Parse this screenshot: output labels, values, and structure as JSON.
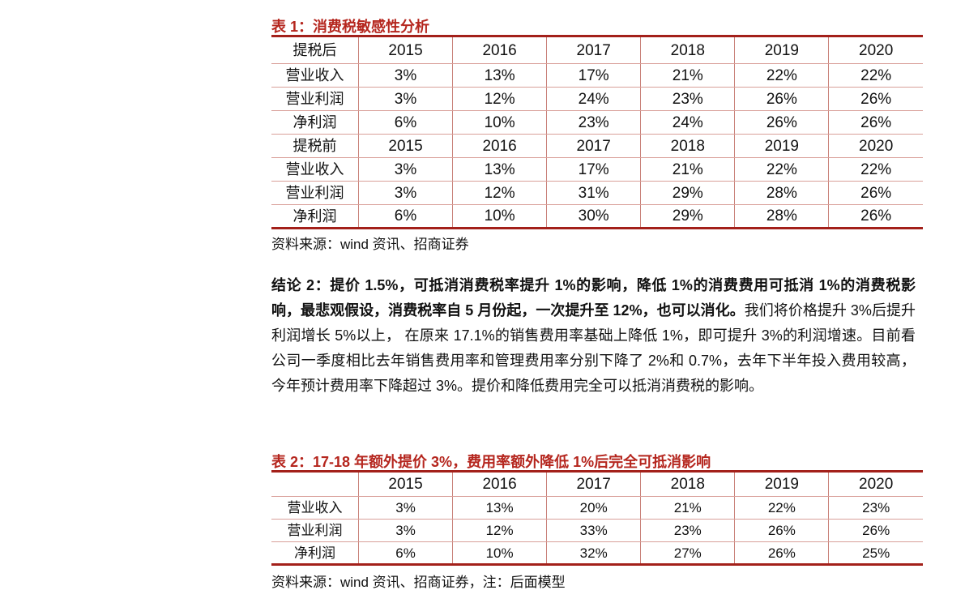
{
  "table1": {
    "title": "表 1：消费税敏感性分析",
    "sections": [
      {
        "header": [
          "提税后",
          "2015",
          "2016",
          "2017",
          "2018",
          "2019",
          "2020"
        ],
        "rows": [
          [
            "营业收入",
            "3%",
            "13%",
            "17%",
            "21%",
            "22%",
            "22%"
          ],
          [
            "营业利润",
            "3%",
            "12%",
            "24%",
            "23%",
            "26%",
            "26%"
          ],
          [
            "净利润",
            "6%",
            "10%",
            "23%",
            "24%",
            "26%",
            "26%"
          ]
        ]
      },
      {
        "header": [
          "提税前",
          "2015",
          "2016",
          "2017",
          "2018",
          "2019",
          "2020"
        ],
        "rows": [
          [
            "营业收入",
            "3%",
            "13%",
            "17%",
            "21%",
            "22%",
            "22%"
          ],
          [
            "营业利润",
            "3%",
            "12%",
            "31%",
            "29%",
            "28%",
            "26%"
          ],
          [
            "净利润",
            "6%",
            "10%",
            "30%",
            "29%",
            "28%",
            "26%"
          ]
        ]
      }
    ],
    "source": "资料来源：wind 资讯、招商证券"
  },
  "conclusion": {
    "bold": "结论 2：提价 1.5%，可抵消消费税率提升 1%的影响，降低 1%的消费费用可抵消 1%的消费税影响，最悲观假设，消费税率自 5 月份起，一次提升至 12%，也可以消化。",
    "text": "我们将价格提升 3%后提升利润增长 5%以上， 在原来 17.1%的销售费用率基础上降低 1%，即可提升 3%的利润增速。目前看公司一季度相比去年销售费用率和管理费用率分别下降了 2%和 0.7%，去年下半年投入费用较高，今年预计费用率下降超过 3%。提价和降低费用完全可以抵消消费税的影响。"
  },
  "table2": {
    "title": "表 2：17-18 年额外提价 3%，费用率额外降低 1%后完全可抵消影响",
    "header": [
      null,
      "2015",
      "2016",
      "2017",
      "2018",
      "2019",
      "2020"
    ],
    "rows": [
      [
        "营业收入",
        "3%",
        "13%",
        "20%",
        "21%",
        "22%",
        "23%"
      ],
      [
        "营业利润",
        "3%",
        "12%",
        "33%",
        "23%",
        "26%",
        "26%"
      ],
      [
        "净利润",
        "6%",
        "10%",
        "32%",
        "27%",
        "26%",
        "25%"
      ]
    ],
    "source": "资料来源：wind 资讯、招商证券，注：后面模型"
  }
}
